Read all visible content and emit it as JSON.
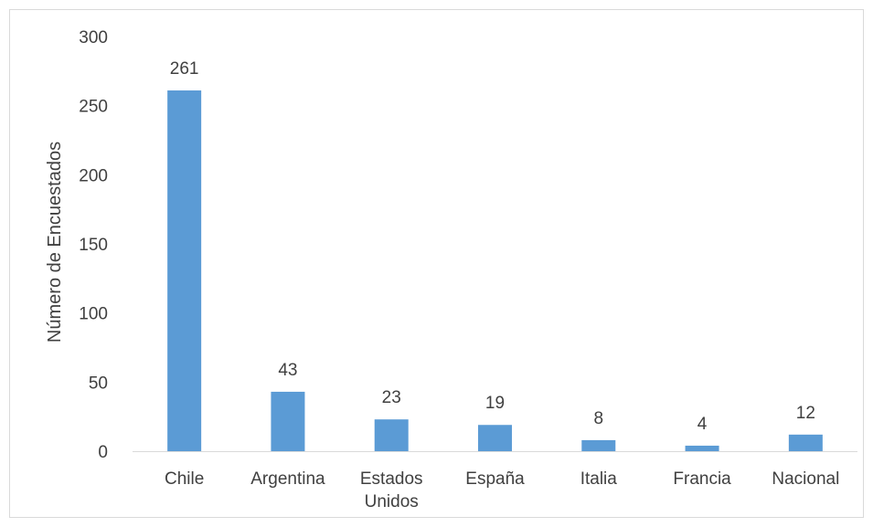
{
  "chart_data": {
    "type": "bar",
    "title": "",
    "xlabel": "",
    "ylabel": "Número de Encuestados",
    "ylim": [
      0,
      300
    ],
    "yticks": [
      0,
      50,
      100,
      150,
      200,
      250,
      300
    ],
    "grid": false,
    "legend": "none",
    "bar_color": "#5b9bd5",
    "categories": [
      [
        "Chile"
      ],
      [
        "Argentina"
      ],
      [
        "Estados",
        "Unidos"
      ],
      [
        "España"
      ],
      [
        "Italia"
      ],
      [
        "Francia"
      ],
      [
        "Nacional"
      ]
    ],
    "values": [
      261,
      43,
      23,
      19,
      8,
      4,
      12
    ]
  }
}
